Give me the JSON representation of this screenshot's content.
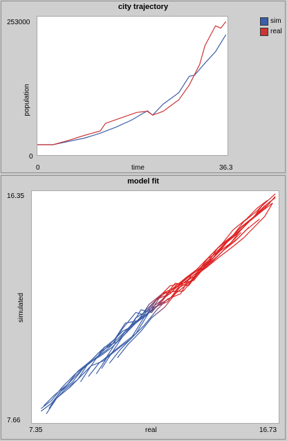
{
  "chart_data": [
    {
      "type": "line",
      "title": "city trajectory",
      "xlabel": "time",
      "ylabel": "population",
      "xlim": [
        0,
        36.3
      ],
      "ylim": [
        0,
        253000
      ],
      "x_tick_labels": [
        "0",
        "36.3"
      ],
      "y_tick_labels": [
        "0",
        "253000"
      ],
      "legend_position": "top-right",
      "series": [
        {
          "name": "sim",
          "color": "#3b5ea8",
          "x": [
            0,
            3,
            6,
            9,
            12,
            15,
            18,
            21,
            22,
            24,
            27,
            29,
            30,
            32,
            34,
            36
          ],
          "y": [
            19000,
            19000,
            25000,
            31000,
            40000,
            51000,
            64000,
            81000,
            73000,
            93000,
            114000,
            144000,
            146000,
            168000,
            189000,
            220000
          ]
        },
        {
          "name": "real",
          "color": "#cc3333",
          "x": [
            0,
            3,
            6,
            9,
            12,
            13,
            16,
            19,
            21,
            22,
            24,
            27,
            29,
            31,
            32,
            34,
            35,
            36
          ],
          "y": [
            19000,
            19000,
            27000,
            36000,
            44000,
            58000,
            68000,
            78000,
            80000,
            73000,
            80000,
            101000,
            128000,
            166000,
            200000,
            236000,
            232000,
            244000
          ]
        }
      ]
    },
    {
      "type": "line",
      "title": "model fit",
      "xlabel": "real",
      "ylabel": "simulated",
      "xlim": [
        7.35,
        16.73
      ],
      "ylim": [
        7.66,
        16.35
      ],
      "x_tick_labels": [
        "7.35",
        "16.73"
      ],
      "y_tick_labels": [
        "7.66",
        "16.35"
      ],
      "series_colors": {
        "start": "#3b5ea8",
        "end": "#dd2222"
      },
      "series": [
        {
          "x": [
            7.7,
            8.1,
            8.5,
            9.0,
            9.4,
            9.9,
            10.4,
            10.8,
            11.3,
            11.7,
            12.1,
            12.6,
            13.1,
            13.5,
            14.0,
            14.5,
            14.9,
            15.3,
            15.8,
            16.1,
            16.6
          ],
          "y": [
            8.2,
            8.5,
            9.0,
            9.5,
            9.8,
            10.3,
            10.6,
            11.2,
            11.8,
            11.7,
            12.3,
            12.8,
            12.9,
            13.0,
            13.6,
            14.1,
            14.4,
            14.9,
            15.4,
            15.8,
            16.25
          ]
        },
        {
          "x": [
            7.7,
            8.1,
            8.6,
            9.1,
            9.5,
            10.0,
            10.4,
            10.9,
            11.3,
            11.8,
            12.2,
            12.7,
            13.1,
            13.6,
            14.0,
            14.5,
            14.9,
            15.4,
            15.8,
            16.2,
            16.5
          ],
          "y": [
            8.1,
            8.4,
            8.9,
            9.3,
            9.9,
            10.2,
            10.5,
            11.0,
            11.6,
            11.9,
            12.2,
            12.6,
            12.6,
            13.2,
            13.5,
            13.9,
            14.2,
            14.6,
            15.0,
            15.4,
            15.9
          ]
        },
        {
          "x": [
            7.8,
            8.2,
            8.7,
            9.1,
            9.6,
            10.0,
            10.5,
            10.9,
            11.4,
            11.8,
            12.3,
            12.7,
            13.2,
            13.6,
            14.1,
            14.5,
            15.0,
            15.4,
            15.9,
            16.2
          ],
          "y": [
            8.3,
            8.7,
            9.1,
            9.6,
            10.0,
            10.4,
            10.8,
            11.4,
            11.5,
            12.1,
            12.5,
            12.7,
            13.1,
            13.4,
            13.9,
            14.3,
            14.7,
            15.2,
            15.6,
            15.9
          ]
        },
        {
          "x": [
            7.9,
            8.3,
            8.8,
            9.2,
            9.6,
            10.1,
            10.6,
            11.0,
            11.5,
            11.9,
            12.4,
            12.8,
            13.3,
            13.7,
            14.2,
            14.6,
            15.1,
            15.5,
            16.0
          ],
          "y": [
            8.0,
            8.6,
            9.0,
            9.4,
            9.8,
            10.5,
            10.7,
            11.1,
            11.9,
            11.8,
            12.4,
            12.9,
            12.8,
            13.3,
            13.7,
            14.1,
            14.5,
            14.9,
            15.3
          ]
        },
        {
          "x": [
            8.0,
            8.4,
            8.9,
            9.3,
            9.8,
            10.2,
            10.7,
            11.1,
            11.6,
            12.0,
            12.5,
            12.9,
            13.4,
            13.8,
            14.3,
            14.7,
            15.2,
            15.6
          ],
          "y": [
            8.2,
            8.8,
            9.2,
            9.7,
            10.1,
            10.4,
            10.9,
            11.3,
            11.7,
            12.2,
            12.6,
            12.8,
            13.2,
            13.5,
            13.8,
            14.2,
            14.6,
            15.0
          ]
        },
        {
          "x": [
            8.1,
            8.5,
            9.0,
            9.4,
            9.9,
            10.3,
            10.8,
            11.2,
            11.7,
            12.1,
            12.6,
            13.0,
            13.5,
            13.9,
            14.4,
            14.8,
            15.3
          ],
          "y": [
            8.4,
            8.9,
            9.4,
            9.8,
            10.2,
            10.6,
            11.1,
            11.3,
            11.9,
            12.3,
            12.5,
            12.9,
            13.3,
            13.5,
            13.9,
            14.3,
            14.8
          ]
        },
        {
          "x": [
            9.2,
            9.6,
            10.1,
            10.5,
            11.0,
            11.4,
            11.9,
            12.3,
            12.8,
            13.2,
            13.7,
            14.1,
            14.6,
            15.0,
            15.5,
            15.9,
            16.3
          ],
          "y": [
            9.2,
            9.8,
            10.0,
            10.6,
            11.2,
            11.5,
            11.9,
            12.5,
            12.6,
            13.1,
            13.4,
            13.9,
            14.4,
            14.9,
            15.3,
            15.7,
            16.0
          ]
        },
        {
          "x": [
            9.5,
            9.9,
            10.4,
            10.8,
            11.3,
            11.7,
            12.2,
            12.6,
            13.1,
            13.5,
            14.0,
            14.4,
            14.9,
            15.3,
            15.8,
            16.2,
            16.6
          ],
          "y": [
            9.4,
            9.9,
            10.3,
            10.9,
            11.4,
            11.7,
            12.1,
            12.6,
            12.9,
            13.2,
            13.6,
            14.2,
            14.6,
            15.0,
            15.4,
            15.8,
            16.1
          ]
        },
        {
          "x": [
            9.8,
            10.2,
            10.7,
            11.1,
            11.6,
            12.0,
            12.5,
            12.9,
            13.4,
            13.8,
            14.3,
            14.7,
            15.2,
            15.6,
            16.1,
            16.5
          ],
          "y": [
            9.5,
            10.1,
            10.5,
            10.8,
            11.6,
            12.0,
            12.2,
            12.7,
            13.0,
            13.5,
            13.9,
            14.4,
            14.8,
            15.2,
            15.6,
            15.9
          ]
        },
        {
          "x": [
            10.0,
            10.4,
            10.9,
            11.3,
            11.8,
            12.2,
            12.7,
            13.1,
            13.6,
            14.0,
            14.5,
            14.9,
            15.4,
            15.8,
            16.2,
            16.6
          ],
          "y": [
            9.7,
            10.3,
            10.7,
            11.0,
            11.8,
            12.1,
            12.4,
            12.9,
            13.2,
            13.8,
            14.1,
            14.6,
            15.0,
            15.4,
            15.7,
            16.15
          ]
        },
        {
          "x": [
            10.3,
            10.7,
            11.2,
            11.6,
            12.1,
            12.5,
            13.0,
            13.4,
            13.9,
            14.3,
            14.8,
            15.2,
            15.7,
            16.0,
            16.4
          ],
          "y": [
            9.9,
            10.4,
            10.9,
            11.3,
            11.9,
            12.3,
            12.5,
            13.2,
            13.6,
            14.0,
            14.5,
            14.9,
            15.3,
            15.6,
            15.9
          ]
        },
        {
          "x": [
            10.6,
            11.0,
            11.5,
            11.9,
            12.4,
            12.8,
            13.3,
            13.7,
            14.2,
            14.6,
            15.1,
            15.5,
            15.9,
            16.2
          ],
          "y": [
            10.1,
            10.6,
            11.1,
            11.6,
            12.0,
            12.5,
            12.9,
            13.3,
            13.8,
            14.3,
            14.7,
            15.1,
            15.5,
            15.7
          ]
        }
      ]
    }
  ]
}
